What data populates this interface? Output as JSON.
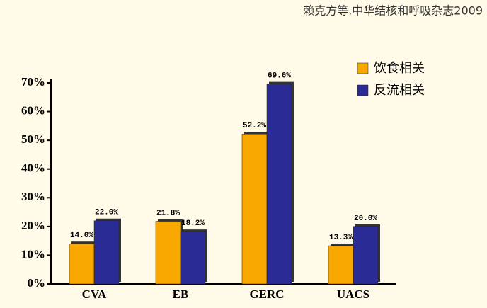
{
  "chart_data": {
    "type": "bar",
    "source": "赖克方等.中华结核和呼吸杂志2009",
    "categories": [
      "CVA",
      "EB",
      "GERC",
      "UACS"
    ],
    "series": [
      {
        "name": "饮食相关",
        "color": "#f9a800",
        "values": [
          14.0,
          21.8,
          52.2,
          13.3
        ],
        "value_labels": [
          "14.0%",
          "21.8%",
          "52.2%",
          "13.3%"
        ]
      },
      {
        "name": "反流相关",
        "color": "#2b2b96",
        "values": [
          22.0,
          18.2,
          69.6,
          20.0
        ],
        "value_labels": [
          "22.0%",
          "18.2%",
          "69.6%",
          "20.0%"
        ]
      }
    ],
    "ylim": [
      0,
      70
    ],
    "yticks": [
      {
        "value": 0,
        "label": "0%"
      },
      {
        "value": 10,
        "label": "10%"
      },
      {
        "value": 20,
        "label": "20%"
      },
      {
        "value": 30,
        "label": "30%"
      },
      {
        "value": 40,
        "label": "40%"
      },
      {
        "value": 50,
        "label": "50%"
      },
      {
        "value": 60,
        "label": "60%"
      },
      {
        "value": 70,
        "label": "70%"
      }
    ],
    "legend": "top-right"
  }
}
